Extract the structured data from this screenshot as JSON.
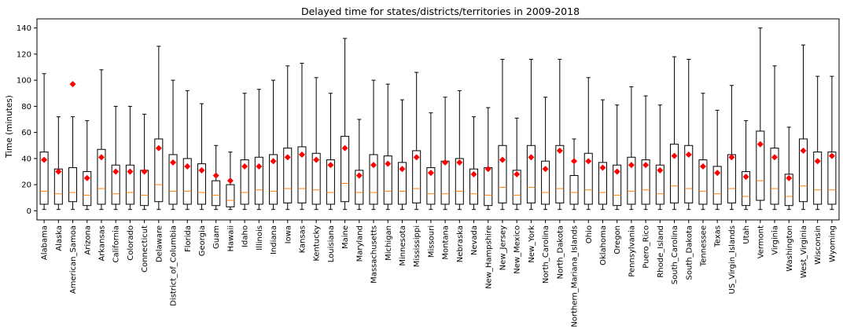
{
  "chart_data": {
    "type": "box",
    "title": "Delayed time for states/districts/territories in 2009-2018",
    "xlabel": "",
    "ylabel": "Time (minutes)",
    "ylim": [
      -7,
      147
    ],
    "yticks": [
      0,
      20,
      40,
      60,
      80,
      100,
      120,
      140
    ],
    "grid": false,
    "colors": {
      "box": "#000000",
      "median": "#ff7f0e",
      "mean_marker": "#ff0000"
    },
    "categories": [
      "Alabama",
      "Alaska",
      "American_Samoa",
      "Arizona",
      "Arkansas",
      "California",
      "Colorado",
      "Connecticut",
      "Delaware",
      "District_of_Columbia",
      "Florida",
      "Georgia",
      "Guam",
      "Hawaii",
      "Idaho",
      "Illinois",
      "Indiana",
      "Iowa",
      "Kansas",
      "Kentucky",
      "Louisiana",
      "Maine",
      "Maryland",
      "Massachusetts",
      "Michigan",
      "Minnesota",
      "Mississippi",
      "Missouri",
      "Montana",
      "Nebraska",
      "Nevada",
      "New_Hampshire",
      "New_Jersey",
      "New_Mexico",
      "New_York",
      "North_Carolina",
      "North_Dakota",
      "Northern_Mariana_Islands",
      "Ohio",
      "Oklahoma",
      "Oregon",
      "Pennsylvania",
      "Puero_Rico",
      "Rhode_Island",
      "South_Carolina",
      "South_Dakota",
      "Tennessee",
      "Texas",
      "US_Virgin_Islands",
      "Utah",
      "Vermont",
      "Virginia",
      "Washington",
      "West_Virginia",
      "Wisconsin",
      "Wyoming"
    ],
    "whisker_low": [
      1,
      1,
      1,
      1,
      1,
      1,
      1,
      1,
      1,
      1,
      1,
      1,
      1,
      1,
      1,
      1,
      1,
      1,
      1,
      1,
      1,
      1,
      1,
      1,
      1,
      1,
      1,
      1,
      1,
      1,
      1,
      1,
      1,
      1,
      1,
      1,
      1,
      1,
      1,
      1,
      1,
      1,
      1,
      1,
      1,
      1,
      1,
      1,
      1,
      1,
      1,
      1,
      1,
      1,
      1,
      1
    ],
    "q1": [
      5,
      5,
      7,
      4,
      5,
      5,
      5,
      4,
      7,
      5,
      5,
      5,
      4,
      3,
      5,
      5,
      5,
      6,
      6,
      5,
      5,
      7,
      5,
      5,
      5,
      5,
      6,
      5,
      5,
      5,
      5,
      4,
      6,
      5,
      6,
      5,
      6,
      5,
      5,
      5,
      4,
      5,
      5,
      5,
      6,
      6,
      5,
      5,
      6,
      4,
      8,
      5,
      4,
      7,
      5,
      5
    ],
    "median": [
      15,
      13,
      14,
      12,
      17,
      13,
      14,
      12,
      20,
      15,
      15,
      14,
      12,
      8,
      14,
      16,
      15,
      17,
      17,
      16,
      14,
      21,
      14,
      14,
      15,
      15,
      17,
      13,
      13,
      15,
      13,
      12,
      18,
      12,
      18,
      14,
      17,
      14,
      16,
      14,
      12,
      15,
      16,
      13,
      19,
      17,
      15,
      13,
      17,
      11,
      23,
      17,
      11,
      19,
      16,
      16
    ],
    "q3": [
      45,
      32,
      33,
      30,
      47,
      35,
      35,
      31,
      55,
      43,
      40,
      36,
      23,
      20,
      39,
      41,
      43,
      48,
      49,
      44,
      39,
      57,
      31,
      43,
      42,
      37,
      46,
      33,
      38,
      40,
      32,
      33,
      50,
      31,
      50,
      38,
      50,
      27,
      44,
      37,
      35,
      41,
      39,
      35,
      51,
      50,
      39,
      34,
      43,
      30,
      61,
      48,
      28,
      55,
      45,
      45
    ],
    "whisker_high": [
      105,
      72,
      72,
      69,
      108,
      80,
      80,
      74,
      126,
      100,
      92,
      82,
      50,
      45,
      90,
      93,
      100,
      111,
      113,
      102,
      90,
      132,
      70,
      100,
      97,
      85,
      106,
      75,
      87,
      92,
      72,
      79,
      116,
      71,
      116,
      87,
      116,
      55,
      102,
      85,
      81,
      95,
      88,
      81,
      118,
      116,
      90,
      77,
      96,
      69,
      140,
      111,
      64,
      127,
      103,
      103
    ],
    "mean": [
      39,
      30,
      97,
      25,
      41,
      30,
      30,
      30,
      48,
      37,
      34,
      31,
      27,
      23,
      34,
      34,
      38,
      41,
      43,
      39,
      35,
      48,
      27,
      35,
      36,
      32,
      41,
      29,
      37,
      37,
      28,
      32,
      39,
      28,
      41,
      32,
      46,
      38,
      38,
      33,
      30,
      35,
      35,
      31,
      42,
      43,
      34,
      29,
      41,
      26,
      51,
      41,
      25,
      46,
      38,
      42
    ]
  }
}
